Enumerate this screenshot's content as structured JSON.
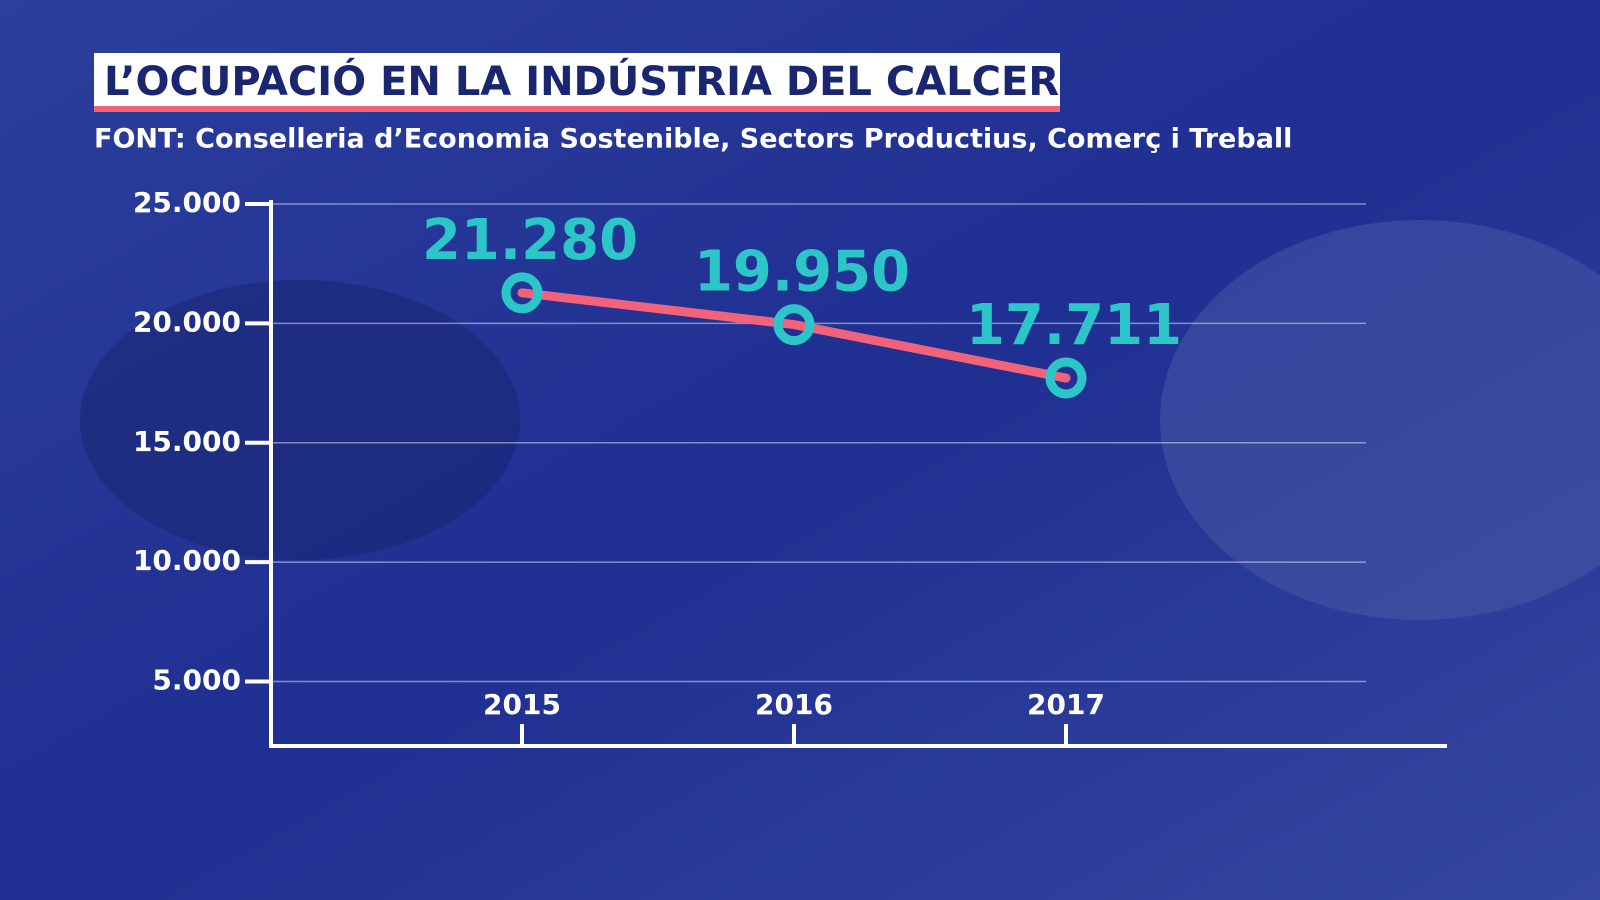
{
  "chart_data": {
    "type": "line",
    "title": "L’OCUPACIÓ EN LA INDÚSTRIA DEL CALCER",
    "subtitle": "FONT: Conselleria d’Economia Sostenible, Sectors Productius, Comerç i Treball",
    "categories": [
      "2015",
      "2016",
      "2017"
    ],
    "values": [
      21280,
      19950,
      17711
    ],
    "value_labels": [
      "21.280",
      "19.950",
      "17.711"
    ],
    "color": "#f2637b",
    "marker_color": "#2cc6c8",
    "ylim": [
      2300,
      25000
    ],
    "yticks": [
      {
        "value": 5000,
        "label": "5.000"
      },
      {
        "value": 10000,
        "label": "10.000"
      },
      {
        "value": 15000,
        "label": "15.000"
      },
      {
        "value": 20000,
        "label": "20.000"
      },
      {
        "value": 25000,
        "label": "25.000"
      }
    ],
    "grid": true
  }
}
